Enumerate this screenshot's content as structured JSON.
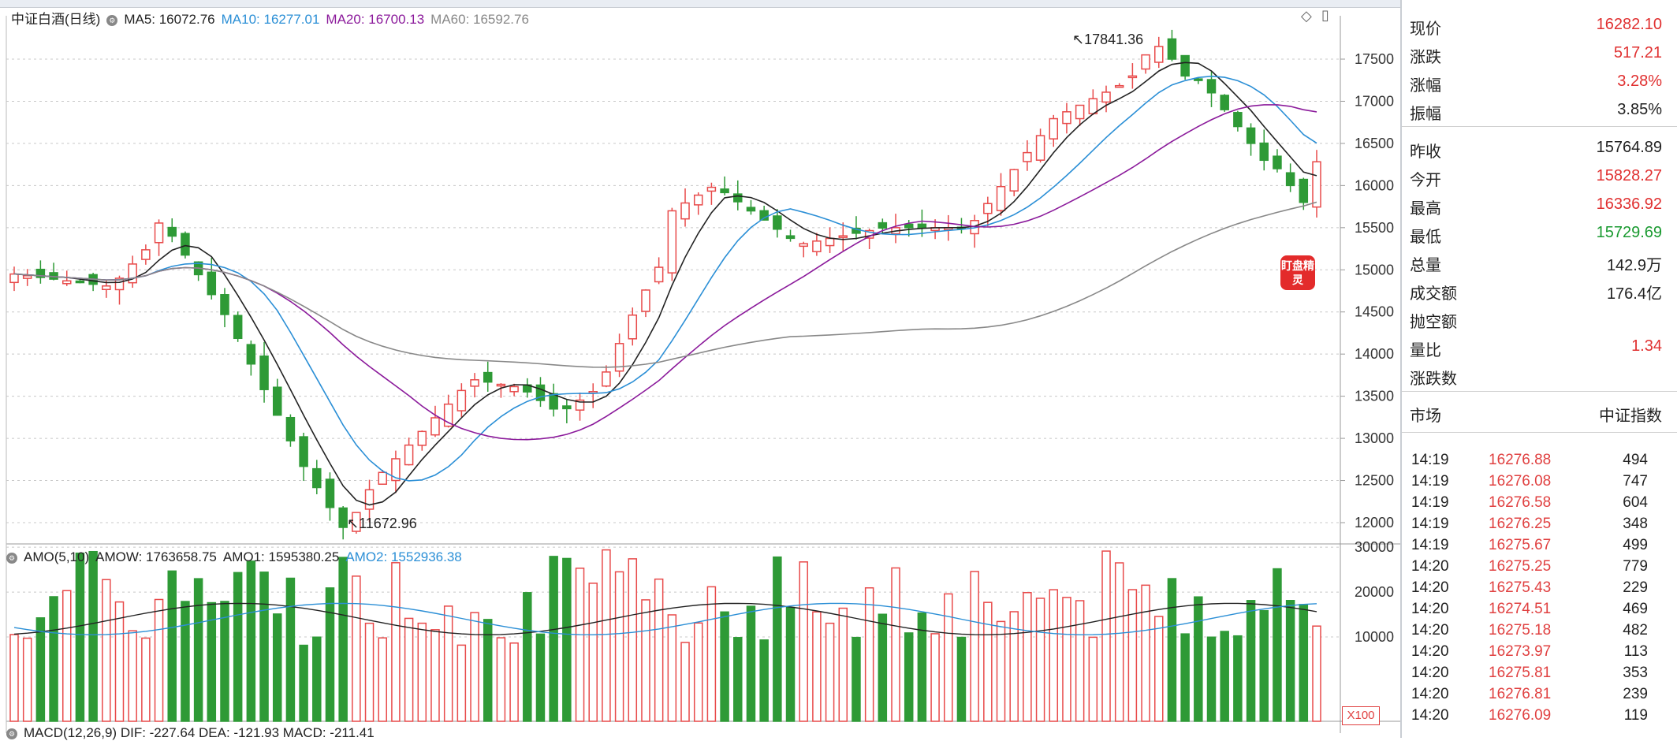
{
  "main_header": {
    "title": "中证白酒(日线)",
    "ma5": "MA5: 16072.76",
    "ma10": "MA10: 16277.01",
    "ma20": "MA20: 16700.13",
    "ma60": "MA60: 16592.76"
  },
  "vol_header": {
    "name": "AMO(5,10)",
    "amow": "AMOW: 1763658.75",
    "amo1": "AMO1: 1595380.25",
    "amo2": "AMO2: 1552936.38"
  },
  "macd_header": "MACD(12,26,9)  DIF: -227.64  DEA: -121.93  MACD: -211.41",
  "colors": {
    "up": "#e84a4a",
    "down": "#2e9a36",
    "ma5": "#222222",
    "ma10": "#2b8fd6",
    "ma20": "#8b1a9b",
    "ma60": "#888888"
  },
  "price_axis": [
    "17500",
    "17000",
    "16500",
    "16000",
    "15500",
    "15000",
    "14500",
    "14000",
    "13500",
    "13000",
    "12500",
    "12000"
  ],
  "volume_axis": [
    "30000",
    "20000",
    "10000"
  ],
  "volume_unit": "X100",
  "annotations": {
    "high": "17841.36",
    "low": "11672.96"
  },
  "logo_text": "盯盘精灵",
  "chart_data": {
    "type": "candlestick",
    "y_range": [
      11500,
      18000
    ],
    "volume_range": [
      0,
      36000
    ],
    "max_label": "17841.36",
    "min_label": "11672.96",
    "series": [
      {
        "name": "MA5",
        "values": [
          16072.76
        ]
      },
      {
        "name": "MA10",
        "values": [
          16277.01
        ]
      },
      {
        "name": "MA20",
        "values": [
          16700.13
        ]
      },
      {
        "name": "MA60",
        "values": [
          16592.76
        ]
      }
    ],
    "amo": {
      "AMOW": 1763658.75,
      "AMO1": 1595380.25,
      "AMO2": 1552936.38
    }
  },
  "quote": {
    "rows1": [
      {
        "label": "现价",
        "value": "16282.10",
        "color": "red"
      },
      {
        "label": "涨跌",
        "value": "517.21",
        "color": "red"
      },
      {
        "label": "涨幅",
        "value": "3.28%",
        "color": "red"
      },
      {
        "label": "振幅",
        "value": "3.85%",
        "color": "blk"
      }
    ],
    "rows2": [
      {
        "label": "昨收",
        "value": "15764.89",
        "color": "blk"
      },
      {
        "label": "今开",
        "value": "15828.27",
        "color": "red"
      },
      {
        "label": "最高",
        "value": "16336.92",
        "color": "red"
      },
      {
        "label": "最低",
        "value": "15729.69",
        "color": "green"
      },
      {
        "label": "总量",
        "value": "142.9万",
        "color": "blk"
      },
      {
        "label": "成交额",
        "value": "176.4亿",
        "color": "blk"
      },
      {
        "label": "抛空额",
        "value": "",
        "color": "blk"
      },
      {
        "label": "量比",
        "value": "1.34",
        "color": "red"
      },
      {
        "label": "涨跌数",
        "value": "",
        "color": "blk"
      }
    ],
    "market_label": "市场",
    "market_value": "中证指数"
  },
  "ticks": [
    {
      "t": "14:19",
      "p": "16276.88",
      "v": "494"
    },
    {
      "t": "14:19",
      "p": "16276.08",
      "v": "747"
    },
    {
      "t": "14:19",
      "p": "16276.58",
      "v": "604"
    },
    {
      "t": "14:19",
      "p": "16276.25",
      "v": "348"
    },
    {
      "t": "14:19",
      "p": "16275.67",
      "v": "499"
    },
    {
      "t": "14:20",
      "p": "16275.25",
      "v": "779"
    },
    {
      "t": "14:20",
      "p": "16275.43",
      "v": "229"
    },
    {
      "t": "14:20",
      "p": "16274.51",
      "v": "469"
    },
    {
      "t": "14:20",
      "p": "16275.18",
      "v": "482"
    },
    {
      "t": "14:20",
      "p": "16273.97",
      "v": "113"
    },
    {
      "t": "14:20",
      "p": "16275.81",
      "v": "353"
    },
    {
      "t": "14:20",
      "p": "16276.81",
      "v": "239"
    },
    {
      "t": "14:20",
      "p": "16276.09",
      "v": "119"
    }
  ]
}
